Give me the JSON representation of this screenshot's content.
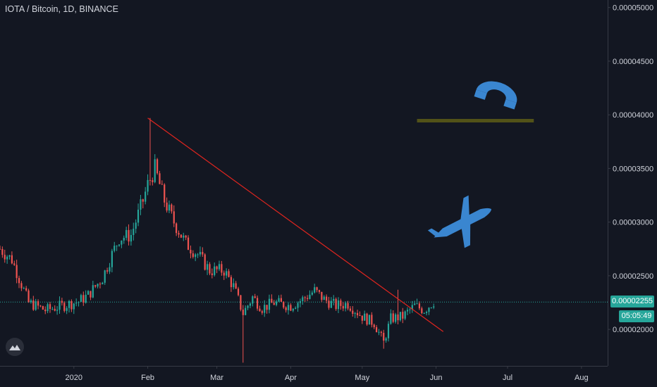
{
  "header": {
    "symbol_title": "IOTA / Bitcoin, 1D, BINANCE"
  },
  "price_axis": {
    "labels": [
      "0.00005000",
      "0.00004500",
      "0.00004000",
      "0.00003500",
      "0.00003000",
      "0.00002500",
      "0.00002000"
    ],
    "last_price_label": "0.00002255",
    "countdown_label": "05:05:49"
  },
  "time_axis": {
    "labels": [
      "2020",
      "Feb",
      "Mar",
      "Apr",
      "May",
      "Jun",
      "Jul",
      "Aug"
    ]
  },
  "colors": {
    "background": "#131722",
    "up_candle": "#26a69a",
    "down_candle": "#ef5350",
    "trendline": "#e0251f",
    "level_line": "#525218",
    "annotation_shapes": "#3a86d0",
    "last_price_line": "#26a69a"
  },
  "annotations": {
    "icons": [
      "magnet-icon",
      "airplane-icon"
    ],
    "trendline": {
      "from": {
        "date": "2020-02-01",
        "price": 3.97e-05
      },
      "to": {
        "date": "2020-06-04",
        "price": 1.98e-05
      }
    },
    "level_line": {
      "from": "2020-05-24",
      "to": "2020-07-12",
      "price": 3.945e-05
    }
  },
  "chart_data": {
    "type": "candlestick",
    "symbol": "IOTA / Bitcoin",
    "interval": "1D",
    "exchange": "BINANCE",
    "ylim": [
      1.66e-05,
      5.07e-05
    ],
    "xlim": [
      "2019-12-01",
      "2020-08-12"
    ],
    "last_price": 2.255e-05,
    "price_path": {
      "dates": [
        "2019-12-01",
        "2019-12-06",
        "2019-12-13",
        "2019-12-20",
        "2019-12-27",
        "2020-01-03",
        "2020-01-07",
        "2020-01-13",
        "2020-01-17",
        "2020-01-20",
        "2020-01-25",
        "2020-01-30",
        "2020-02-01",
        "2020-02-04",
        "2020-02-08",
        "2020-02-12",
        "2020-02-17",
        "2020-02-22",
        "2020-02-27",
        "2020-03-04",
        "2020-03-08",
        "2020-03-12",
        "2020-03-16",
        "2020-03-20",
        "2020-03-25",
        "2020-04-01",
        "2020-04-06",
        "2020-04-11",
        "2020-04-15",
        "2020-04-20",
        "2020-04-25",
        "2020-05-01",
        "2020-05-06",
        "2020-05-10",
        "2020-05-13",
        "2020-05-18",
        "2020-05-23",
        "2020-05-27",
        "2020-05-31"
      ],
      "close": [
        2.75e-05,
        2.65e-05,
        2.25e-05,
        2.18e-05,
        2.22e-05,
        2.26e-05,
        2.32e-05,
        2.48e-05,
        2.7e-05,
        2.85e-05,
        2.88e-05,
        3.2e-05,
        3.35e-05,
        3.5e-05,
        3.2e-05,
        3e-05,
        2.8e-05,
        2.7e-05,
        2.55e-05,
        2.55e-05,
        2.4e-05,
        2.15e-05,
        2.3e-05,
        2.2e-05,
        2.25e-05,
        2.22e-05,
        2.28e-05,
        2.36e-05,
        2.28e-05,
        2.22e-05,
        2.24e-05,
        2.12e-05,
        2.06e-05,
        1.88e-05,
        2.1e-05,
        2.12e-05,
        2.22e-05,
        2.18e-05,
        2.26e-05
      ]
    },
    "wick_extremes": [
      {
        "date": "2020-02-02",
        "high": 3.97e-05
      },
      {
        "date": "2020-03-12",
        "low": 1.69e-05
      },
      {
        "date": "2020-05-10",
        "low": 1.82e-05
      },
      {
        "date": "2020-05-16",
        "high": 2.37e-05
      }
    ]
  }
}
